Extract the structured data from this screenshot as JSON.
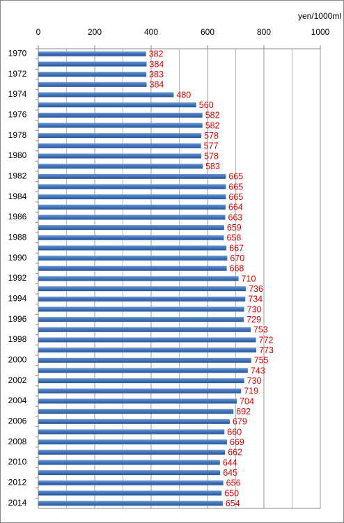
{
  "chart_data": {
    "type": "bar",
    "orientation": "horizontal",
    "xlabel": "yen/1000ml",
    "categories": [
      "1970",
      null,
      "1972",
      null,
      "1974",
      null,
      "1976",
      null,
      "1978",
      null,
      "1980",
      null,
      "1982",
      null,
      "1984",
      null,
      "1986",
      null,
      "1988",
      null,
      "1990",
      null,
      "1992",
      null,
      "1994",
      null,
      "1996",
      null,
      "1998",
      null,
      "2000",
      null,
      "2002",
      null,
      "2004",
      null,
      "2006",
      null,
      "2008",
      null,
      "2010",
      null,
      "2012",
      null,
      "2014"
    ],
    "values": [
      382,
      384,
      383,
      384,
      480,
      560,
      582,
      582,
      578,
      577,
      578,
      583,
      665,
      665,
      665,
      664,
      663,
      659,
      658,
      667,
      670,
      668,
      710,
      736,
      734,
      730,
      729,
      753,
      772,
      773,
      755,
      743,
      730,
      719,
      704,
      692,
      679,
      660,
      669,
      662,
      644,
      645,
      656,
      650,
      654
    ],
    "color": "#3f72b8",
    "value_label_color": "#e00000",
    "xlim": [
      0,
      1000
    ],
    "xticks": [
      0,
      200,
      400,
      600,
      800,
      1000
    ],
    "grid": true,
    "grid_step": 100
  }
}
